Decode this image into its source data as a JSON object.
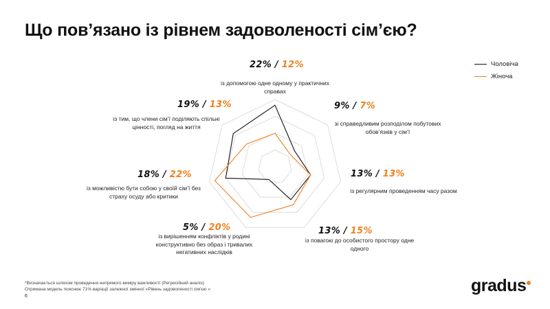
{
  "title": "Що пов’язано із рівнем задоволеності сім’єю?",
  "legend": [
    {
      "label": "Чоловіча",
      "color": "#111111"
    },
    {
      "label": "Жіноча",
      "color": "#f08020"
    }
  ],
  "chart_data": {
    "type": "radar",
    "title": "",
    "series": [
      {
        "name": "Чоловіча",
        "color": "#111111",
        "values": [
          22,
          9,
          13,
          13,
          5,
          18,
          19
        ]
      },
      {
        "name": "Жіноча",
        "color": "#f08020",
        "values": [
          12,
          7,
          13,
          15,
          20,
          22,
          13
        ]
      }
    ],
    "axes": [
      {
        "label": "із допомогою одне одному у практичних справах",
        "men": "22%",
        "women": "12%"
      },
      {
        "label": "зі справедливим розподілом побутових обов’язків у сім’ї",
        "men": "9%",
        "women": "7%"
      },
      {
        "label": "із регулярним проведенням часу разом",
        "men": "13%",
        "women": "13%"
      },
      {
        "label": "із повагою до особистого простору одне одного",
        "men": "13%",
        "women": "15%"
      },
      {
        "label": "із вирішенням конфліктів у родині конструктивно без образ і тривалих негативних наслідків",
        "men": "5%",
        "women": "20%"
      },
      {
        "label": "із можливістю бути собою у своїй сім’ї без страху осуду або критики",
        "men": "18%",
        "women": "22%"
      },
      {
        "label": "із тим, що члени сім’ї поділяють спільні цінності, погляд на життя",
        "men": "19%",
        "women": "13%"
      }
    ],
    "grid": true
  },
  "separator": "/",
  "footnote": [
    "*Визначається шляхом проведення непрямого виміру важливості (Регресійний аналіз)",
    "Отримана модель пояснює 71% варіації залежної змінної «Рівень задоволеності сім’єю »"
  ],
  "page_number": "6",
  "logo": "gradus"
}
